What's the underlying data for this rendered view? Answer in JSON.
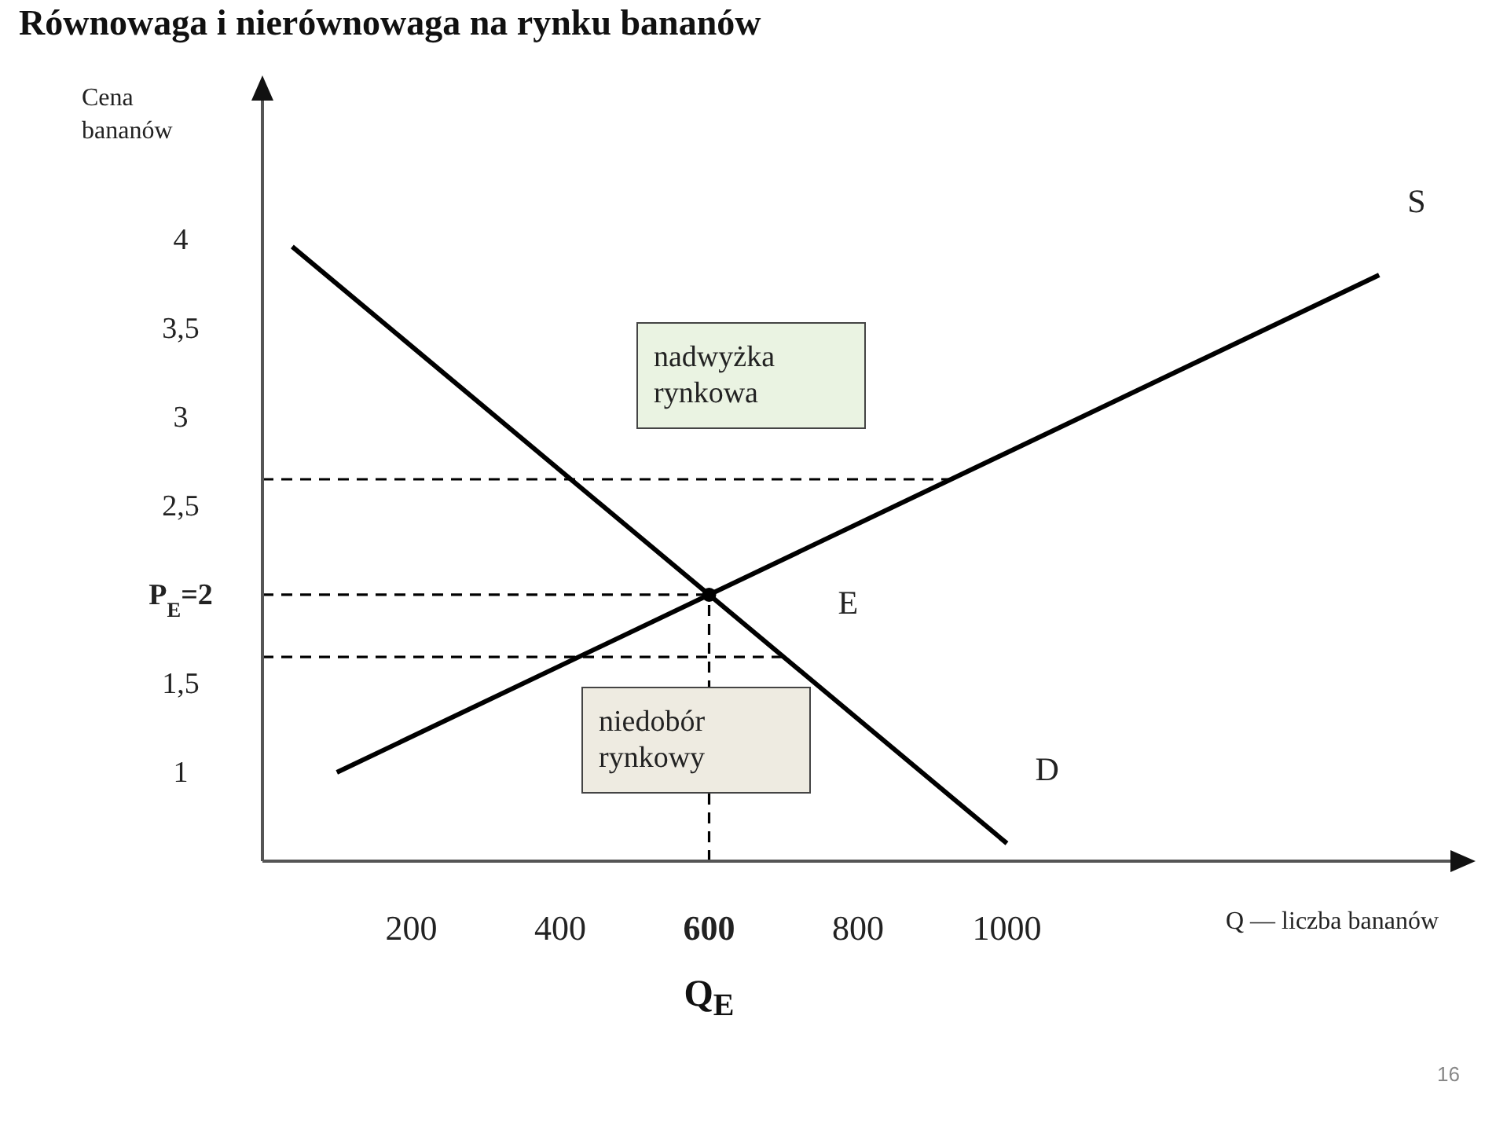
{
  "chart_data": {
    "type": "line",
    "title": "Równowaga i nierównowaga na rynku bananów",
    "xlabel": "Q — liczba bananów",
    "ylabel": "Cena bananów",
    "xlim": [
      0,
      1600
    ],
    "xticks": [
      200,
      400,
      600,
      800,
      1000
    ],
    "ylim": [
      0.5,
      4.8
    ],
    "yticks": [
      1,
      {
        "value": 1.5,
        "label": "1,5"
      },
      {
        "value": 2,
        "label": "P$_{E}$=2"
      },
      {
        "value": 2.5,
        "label": "2,5"
      },
      3,
      {
        "value": 3.5,
        "label": "3,5"
      },
      4
    ],
    "grid": false,
    "marker": "none",
    "series": [
      {
        "name": "D",
        "color": "#000000",
        "x": [
          40,
          1000
        ],
        "values": [
          3.96,
          0.6
        ],
        "line_style": "solid"
      },
      {
        "name": "S",
        "color": "#000000",
        "x": [
          100,
          1500
        ],
        "values": [
          1,
          3.8
        ],
        "line_style": "solid"
      },
      {
        "color": "#000000",
        "x": [
          0,
          925
        ],
        "values": [
          2.65,
          2.65
        ],
        "line_style": "dashed"
      },
      {
        "color": "#000000",
        "x": [
          0,
          600
        ],
        "values": [
          2,
          2
        ],
        "line_style": "dashed"
      },
      {
        "color": "#000000",
        "x": [
          0,
          700
        ],
        "values": [
          1.65,
          1.65
        ],
        "line_style": "dashed"
      },
      {
        "color": "#000000",
        "x": [
          600,
          600
        ],
        "values": [
          0.5,
          2
        ],
        "line_style": "dashed"
      },
      {
        "name": "E",
        "type": "scatter",
        "color": "#000000",
        "x": [
          600
        ],
        "values": [
          2
        ],
        "marker": "circle"
      }
    ],
    "annotations": [
      "nadwyżka rynkowa",
      "niedobór rynkowy",
      "Q$_{E}$",
      "16"
    ]
  }
}
